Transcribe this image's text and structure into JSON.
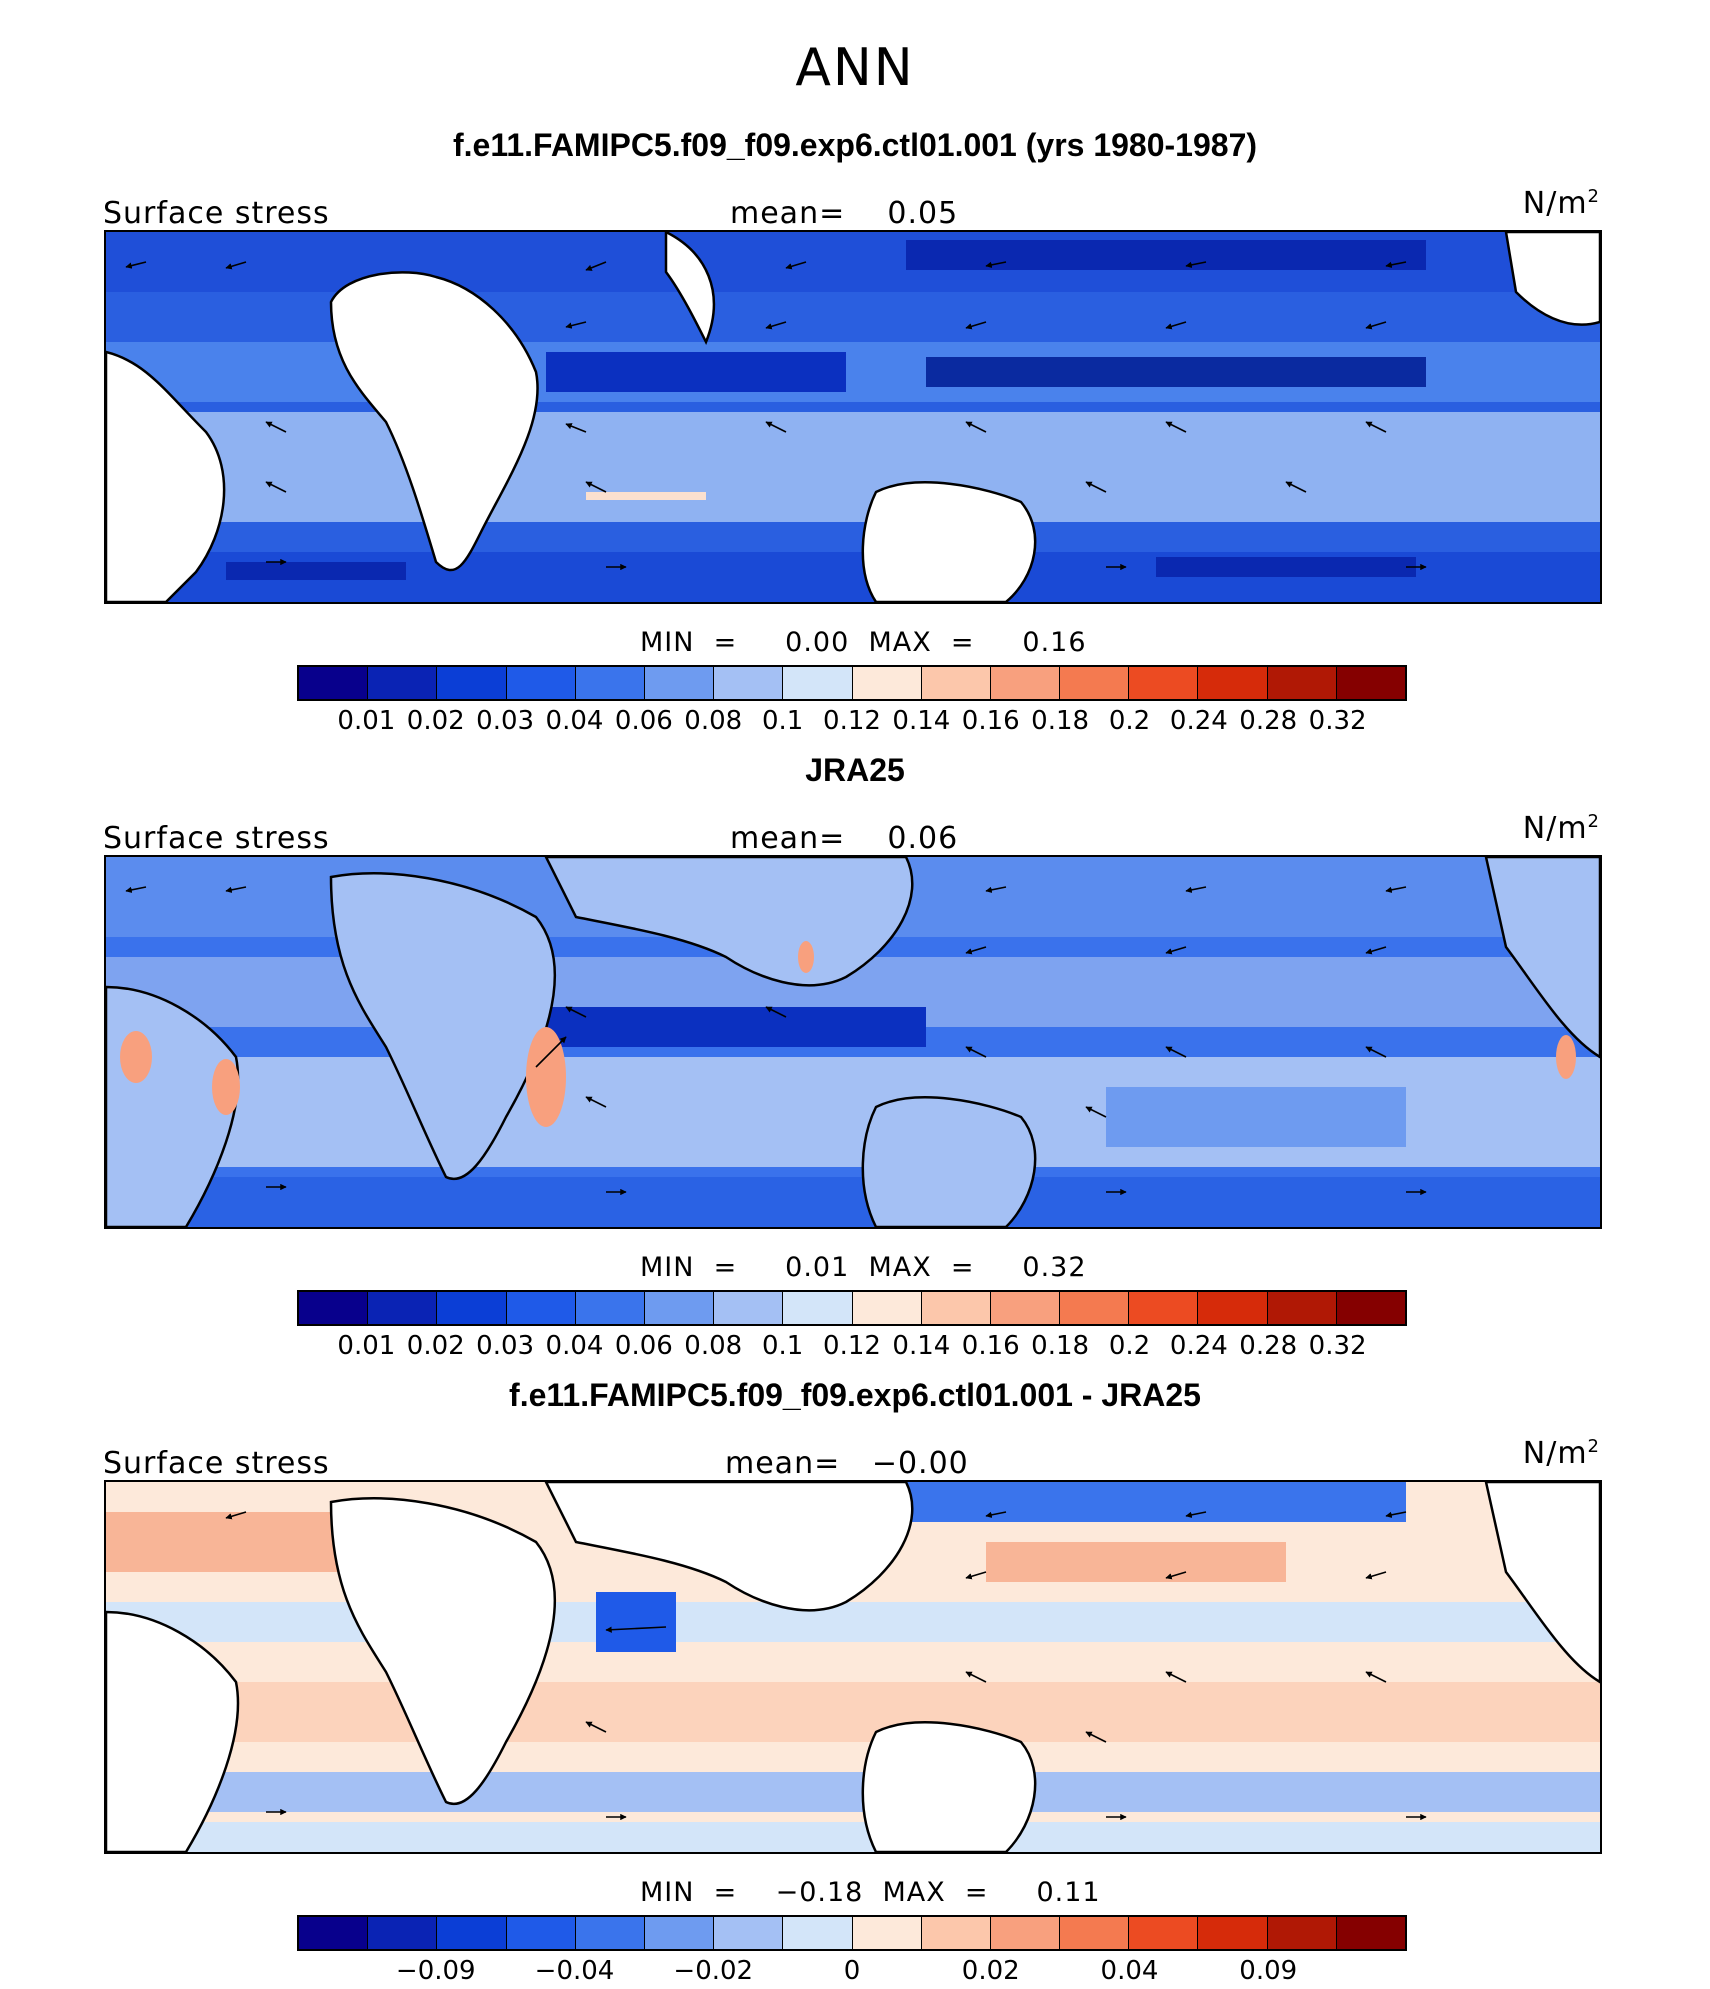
{
  "figure": {
    "season": "ANN"
  },
  "panels": [
    {
      "title": "f.e11.FAMIPC5.f09_f09.exp6.ctl01.001 (yrs 1980-1987)",
      "field": "Surface stress",
      "mean_text": "mean=    0.05",
      "units_base": "N/m",
      "units_exp": "2",
      "minmax_text": "MIN  =     0.00  MAX  =     0.16",
      "colorbar": {
        "colors": [
          "#08008c",
          "#0a23b4",
          "#0b3ed6",
          "#1f5ae8",
          "#3a74ec",
          "#6e9bf0",
          "#a4c0f4",
          "#d3e5f9",
          "#fde9da",
          "#fcc7ab",
          "#f8a07e",
          "#f47a50",
          "#ec4b22",
          "#d62b0a",
          "#b01805",
          "#850000"
        ],
        "labels": [
          "0.01",
          "0.02",
          "0.03",
          "0.04",
          "0.06",
          "0.08",
          "0.1",
          "0.12",
          "0.14",
          "0.16",
          "0.18",
          "0.2",
          "0.24",
          "0.28",
          "0.32"
        ]
      }
    },
    {
      "title": "JRA25",
      "field": "Surface stress",
      "mean_text": "mean=    0.06",
      "units_base": "N/m",
      "units_exp": "2",
      "minmax_text": "MIN  =     0.01  MAX  =     0.32",
      "colorbar": {
        "colors": [
          "#08008c",
          "#0a23b4",
          "#0b3ed6",
          "#1f5ae8",
          "#3a74ec",
          "#6e9bf0",
          "#a4c0f4",
          "#d3e5f9",
          "#fde9da",
          "#fcc7ab",
          "#f8a07e",
          "#f47a50",
          "#ec4b22",
          "#d62b0a",
          "#b01805",
          "#850000"
        ],
        "labels": [
          "0.01",
          "0.02",
          "0.03",
          "0.04",
          "0.06",
          "0.08",
          "0.1",
          "0.12",
          "0.14",
          "0.16",
          "0.18",
          "0.2",
          "0.24",
          "0.28",
          "0.32"
        ]
      }
    },
    {
      "title": "f.e11.FAMIPC5.f09_f09.exp6.ctl01.001 - JRA25",
      "field": "Surface stress",
      "mean_text": "mean=   −0.00",
      "units_base": "N/m",
      "units_exp": "2",
      "minmax_text": "MIN  =    −0.18  MAX  =     0.11",
      "colorbar": {
        "colors": [
          "#08008c",
          "#0a23b4",
          "#0b3ed6",
          "#1f5ae8",
          "#3a74ec",
          "#6e9bf0",
          "#a4c0f4",
          "#d3e5f9",
          "#fde9da",
          "#fcc7ab",
          "#f8a07e",
          "#f47a50",
          "#ec4b22",
          "#d62b0a",
          "#b01805",
          "#850000"
        ],
        "labels": [
          "−0.09",
          "−0.04",
          "−0.02",
          "0",
          "0.02",
          "0.04",
          "0.09"
        ]
      }
    }
  ]
}
